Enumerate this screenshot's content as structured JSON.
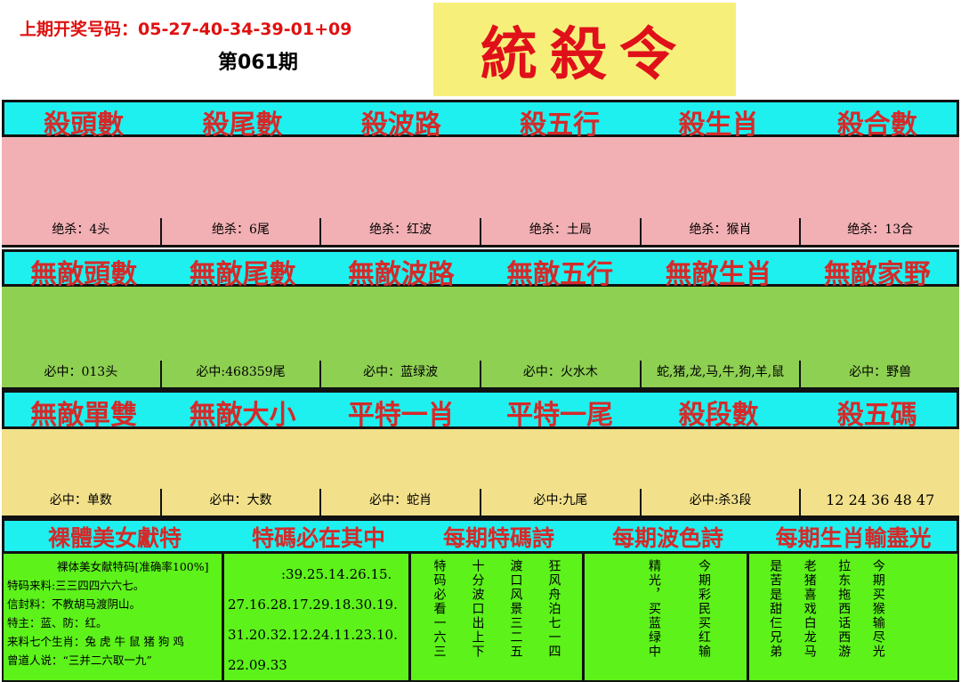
{
  "header": {
    "last_draw": "上期开奖号码：05-27-40-34-39-01+09",
    "issue": "第061期",
    "logo": "統殺令"
  },
  "row1": {
    "titles": [
      "殺頭數",
      "殺尾數",
      "殺波路",
      "殺五行",
      "殺生肖",
      "殺合數"
    ],
    "values": [
      "绝杀：4头",
      "绝杀：6尾",
      "绝杀：红波",
      "绝杀：土局",
      "绝杀：猴肖",
      "绝杀：13合"
    ]
  },
  "row2": {
    "titles": [
      "無敵頭數",
      "無敵尾數",
      "無敵波路",
      "無敵五行",
      "無敵生肖",
      "無敵家野"
    ],
    "values": [
      "必中：013头",
      "必中:468359尾",
      "必中：蓝绿波",
      "必中：火水木",
      "蛇,猪,龙,马,牛,狗,羊,鼠",
      "必中：野兽"
    ]
  },
  "row3": {
    "titles": [
      "無敵單雙",
      "無敵大小",
      "平特一肖",
      "平特一尾",
      "殺段數",
      "殺五碼"
    ],
    "values": [
      "必中：单数",
      "必中：大数",
      "必中：蛇肖",
      "必中:九尾",
      "必中:杀3段",
      "12  24  36  48  47"
    ]
  },
  "row4": {
    "titles": [
      "裸體美女獻特",
      "特碼必在其中",
      "每期特碼詩",
      "每期波色詩",
      "每期生肖輸盡光"
    ]
  },
  "bottom": {
    "col1": [
      "裸体美女献特码[准确率100%]",
      "特码来料:三三四四六六七。",
      "信封料：不教胡马渡阴山。",
      "特主：蓝、防：红。",
      "来料七个生肖：兔 虎 牛 鼠 猪 狗 鸡",
      "曾道人说：“三并二六取一九”"
    ],
    "col2": [
      ":39.25.14.26.15.",
      "27.16.28.17.29.18.30.19.",
      "31.20.32.12.24.11.23.10.",
      "22.09.33"
    ],
    "poem1": [
      "特码必看一六三",
      "十分波口出上下",
      "渡口风景三二五",
      "狂风舟泊七一四"
    ],
    "poem2": [
      "精光，买蓝绿中",
      "今期彩民买红输"
    ],
    "poem3": [
      "是苦是甜仨兄弟",
      "老猪喜戏白龙马",
      "拉东拖西话西游",
      "今期买猴输尽光"
    ]
  },
  "colors": {
    "cyan": "#1ef0f0",
    "pink": "#f2b0b4",
    "green": "#8ed052",
    "yellow": "#f2e08a",
    "bright_green": "#5cf21a",
    "red": "#d42a2a"
  }
}
